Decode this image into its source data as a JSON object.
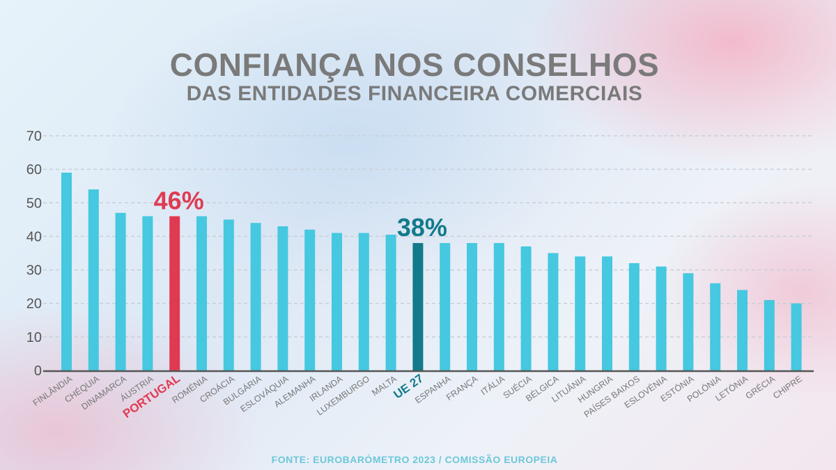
{
  "title": "CONFIANÇA NOS CONSELHOS",
  "subtitle": "DAS ENTIDADES FINANCEIRA COMERCIAIS",
  "source": "FONTE: EUROBARÓMETRO 2023 / COMISSÃO EUROPEIA",
  "colors": {
    "bar": "#45c8e0",
    "portugal": "#e03a52",
    "eu27": "#127a8a",
    "axis": "#555555",
    "label": "#777777",
    "grid": "#c9cfd8"
  },
  "chart_data": {
    "type": "bar",
    "ylim": [
      0,
      70
    ],
    "yticks": [
      0,
      10,
      20,
      30,
      40,
      50,
      60,
      70
    ],
    "grid": true,
    "categories": [
      "FINLÂNDIA",
      "CHÉQUIA",
      "DINAMARCA",
      "ÁUSTRIA",
      "PORTUGAL",
      "ROMÉNIA",
      "CROÁCIA",
      "BULGÁRIA",
      "ESLOVÁQUIA",
      "ALEMANHA",
      "IRLANDA",
      "LUXEMBURGO",
      "MALTA",
      "UE 27",
      "ESPANHA",
      "FRANÇA",
      "ITÁLIA",
      "SUÉCIA",
      "BÉLGICA",
      "LITUÂNIA",
      "HUNGRIA",
      "PAÍSES BAIXOS",
      "ESLOVÉNIA",
      "ESTÓNIA",
      "POLÓNIA",
      "LETÓNIA",
      "GRÉCIA",
      "CHIPRE"
    ],
    "values": [
      59,
      54,
      47,
      46,
      46,
      46,
      45,
      44,
      43,
      42,
      41,
      41,
      40.5,
      38,
      38,
      38,
      38,
      37,
      35,
      34,
      34,
      32,
      31,
      29,
      26,
      24,
      21,
      20
    ],
    "highlights": [
      {
        "category": "PORTUGAL",
        "label": "46%",
        "color": "portugal"
      },
      {
        "category": "UE 27",
        "label": "38%",
        "color": "eu27"
      }
    ]
  }
}
